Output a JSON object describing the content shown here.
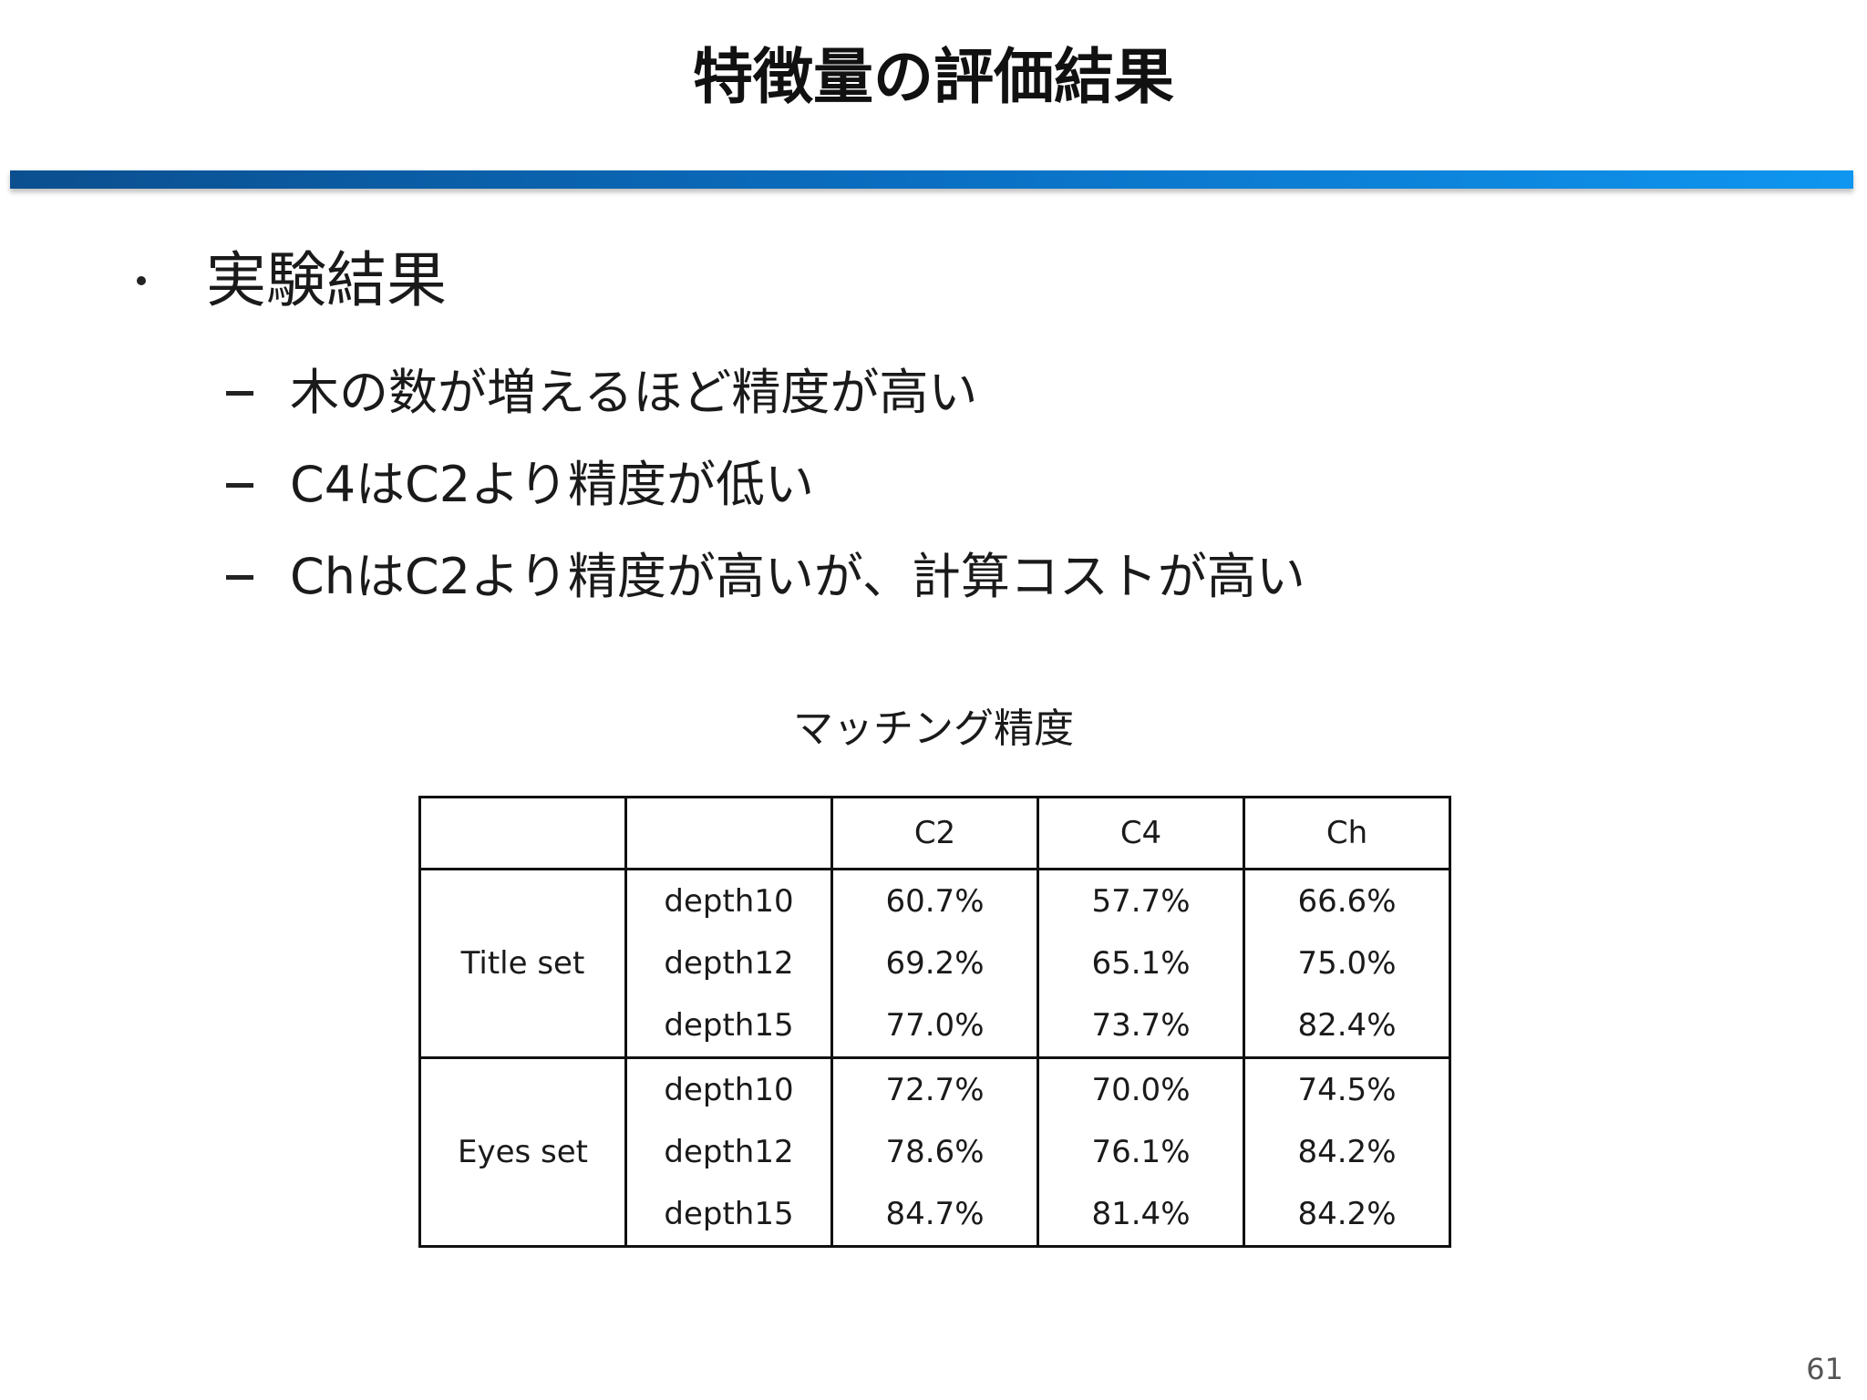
{
  "slide": {
    "title": "特徴量の評価結果",
    "page_number": "61"
  },
  "bullets": [
    {
      "text": "実験結果",
      "sub_items": [
        "木の数が増えるほど精度が高い",
        "C4はC2より精度が低い",
        "ChはC2より精度が高いが、計算コストが高い"
      ]
    }
  ],
  "table": {
    "caption": "マッチング精度",
    "headers": [
      "",
      "",
      "C2",
      "C4",
      "Ch"
    ],
    "groups": [
      {
        "label": "Title set",
        "rows": [
          {
            "depth": "depth10",
            "values": [
              "60.7%",
              "57.7%",
              "66.6%"
            ]
          },
          {
            "depth": "depth12",
            "values": [
              "69.2%",
              "65.1%",
              "75.0%"
            ]
          },
          {
            "depth": "depth15",
            "values": [
              "77.0%",
              "73.7%",
              "82.4%"
            ]
          }
        ]
      },
      {
        "label": "Eyes set",
        "rows": [
          {
            "depth": "depth10",
            "values": [
              "72.7%",
              "70.0%",
              "74.5%"
            ]
          },
          {
            "depth": "depth12",
            "values": [
              "78.6%",
              "76.1%",
              "84.2%"
            ]
          },
          {
            "depth": "depth15",
            "values": [
              "84.7%",
              "81.4%",
              "84.2%"
            ]
          }
        ]
      }
    ]
  }
}
